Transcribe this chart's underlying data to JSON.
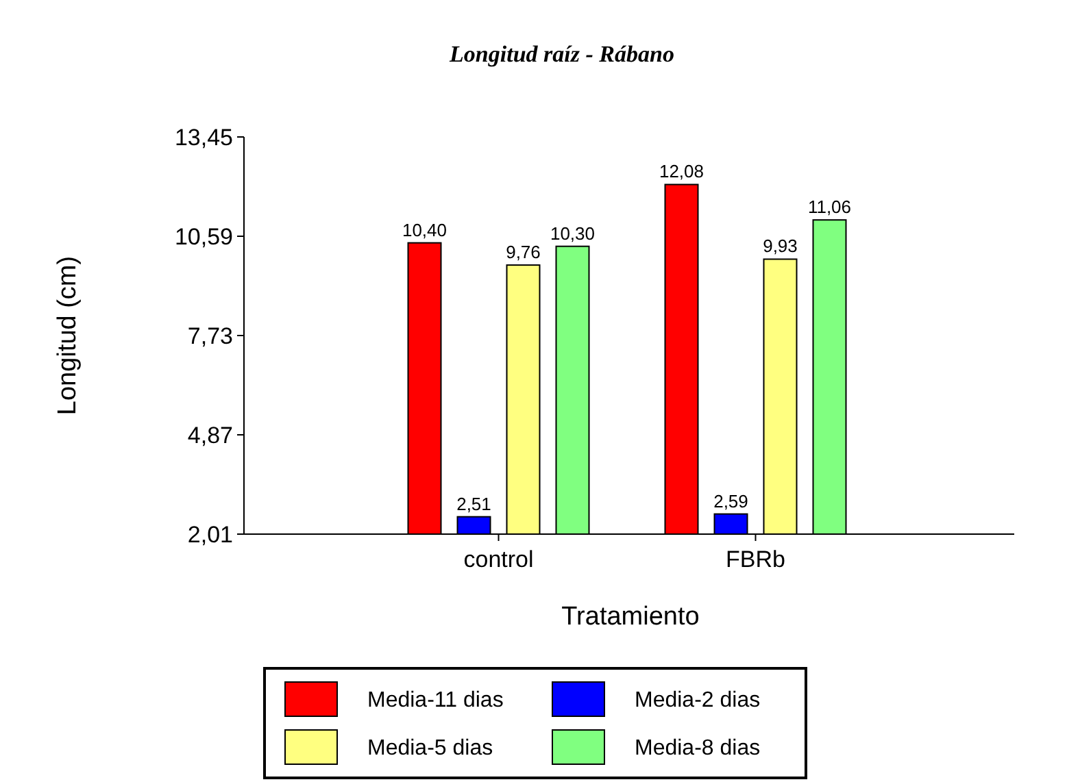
{
  "chart_data": {
    "type": "bar",
    "title": "Longitud raíz - Rábano",
    "xlabel": "Tratamiento",
    "ylabel": "Longitud (cm)",
    "categories": [
      "control",
      "FBRb"
    ],
    "series": [
      {
        "name": "Media-11 dias",
        "color": "#ff0000",
        "values": [
          10.4,
          12.08
        ],
        "value_labels": [
          "10,40",
          "12,08"
        ]
      },
      {
        "name": "Media-2 dias",
        "color": "#0000ff",
        "values": [
          2.51,
          2.59
        ],
        "value_labels": [
          "2,51",
          "2,59"
        ]
      },
      {
        "name": "Media-5 dias",
        "color": "#ffff80",
        "values": [
          9.76,
          9.93
        ],
        "value_labels": [
          "9,76",
          "9,93"
        ]
      },
      {
        "name": "Media-8 dias",
        "color": "#80ff80",
        "values": [
          10.3,
          11.06
        ],
        "value_labels": [
          "10,30",
          "11,06"
        ]
      }
    ],
    "ylim": [
      2.01,
      13.45
    ],
    "yticks": [
      {
        "value": 2.01,
        "label": "2,01"
      },
      {
        "value": 4.87,
        "label": "4,87"
      },
      {
        "value": 7.73,
        "label": "7,73"
      },
      {
        "value": 10.59,
        "label": "10,59"
      },
      {
        "value": 13.45,
        "label": "13,45"
      }
    ],
    "legend": "bottom"
  }
}
